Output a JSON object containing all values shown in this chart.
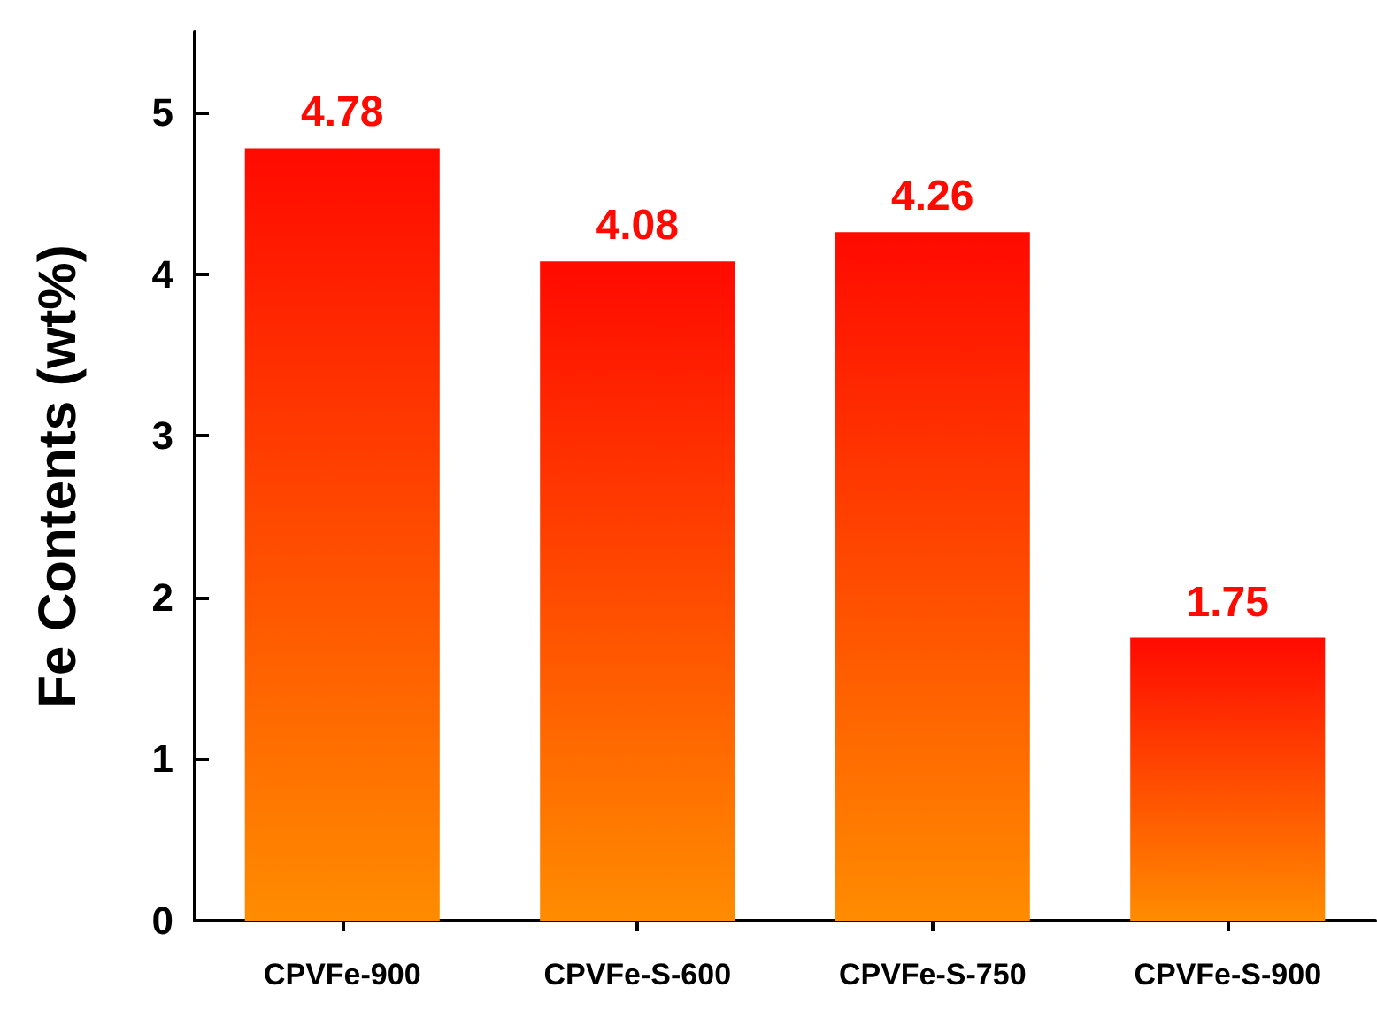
{
  "chart_data": {
    "type": "bar",
    "ylabel": "Fe Contents (wt%)",
    "categories": [
      "CPVFe-900",
      "CPVFe-S-600",
      "CPVFe-S-750",
      "CPVFe-S-900"
    ],
    "values": [
      4.78,
      4.08,
      4.26,
      1.75
    ],
    "color": "#ff0a00",
    "ylim": [
      0,
      5.5
    ],
    "yticks": [
      0,
      1,
      2,
      3,
      4,
      5
    ],
    "grid": false,
    "data_labels": true
  }
}
